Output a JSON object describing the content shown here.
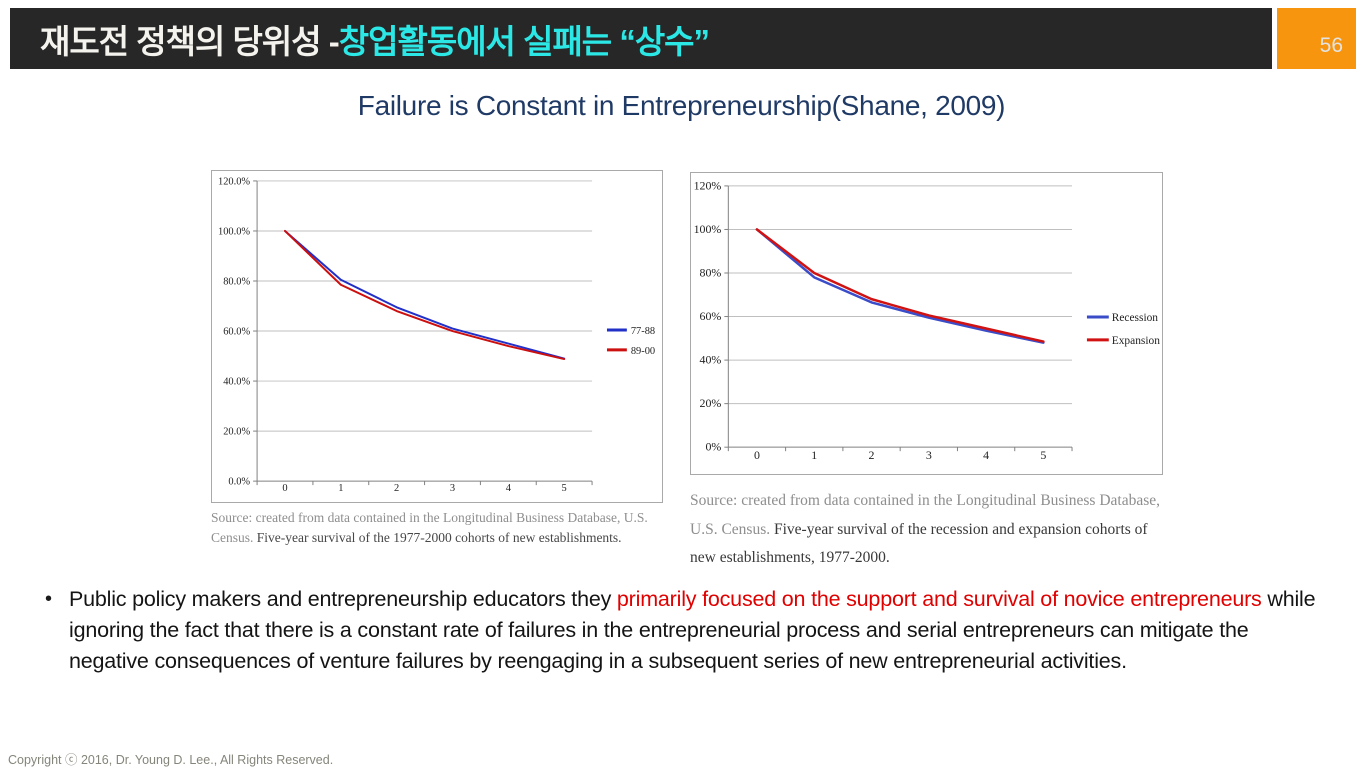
{
  "header": {
    "title_white": "재도전 정책의 당위성 - ",
    "title_cyan": "창업활동에서 실패는  “상수”",
    "page_number": "56",
    "bar_color": "#272727",
    "accent_color": "#2be8e6",
    "page_box_color": "#f7950f"
  },
  "slide_title": "Failure is Constant in Entrepreneurship(Shane, 2009)",
  "title_color": "#203a66",
  "chart_data": [
    {
      "type": "line",
      "title": "",
      "x": [
        "0",
        "1",
        "2",
        "3",
        "4",
        "5"
      ],
      "xlabel": "",
      "ylabel": "",
      "ylim": [
        0,
        120
      ],
      "ytick_labels": [
        "0.0%",
        "20.0%",
        "40.0%",
        "60.0%",
        "80.0%",
        "100.0%",
        "120.0%"
      ],
      "grid": true,
      "legend_position": "right",
      "series": [
        {
          "name": "77-88",
          "color": "#2230c8",
          "values": [
            100,
            80.5,
            69.5,
            61,
            55,
            49
          ]
        },
        {
          "name": "89-00",
          "color": "#cc0f0f",
          "values": [
            100,
            78.5,
            68,
            60,
            54,
            48.8
          ]
        }
      ]
    },
    {
      "type": "line",
      "title": "",
      "x": [
        "0",
        "1",
        "2",
        "3",
        "4",
        "5"
      ],
      "xlabel": "",
      "ylabel": "",
      "ylim": [
        0,
        120
      ],
      "ytick_labels": [
        "0%",
        "20%",
        "40%",
        "60%",
        "80%",
        "100%",
        "120%"
      ],
      "grid": true,
      "legend_position": "right",
      "series": [
        {
          "name": "Recession",
          "color": "#3a4cc8",
          "values": [
            100,
            78,
            66.5,
            59.5,
            53.5,
            48
          ]
        },
        {
          "name": "Expansion",
          "color": "#d11212",
          "values": [
            100,
            80,
            68,
            60.5,
            54.5,
            48.5
          ]
        }
      ]
    }
  ],
  "captions": {
    "left": [
      {
        "style": "gray",
        "text": "Source: created from data contained in the Longitudinal Business Database, U.S. Census. "
      },
      {
        "style": "dark",
        "text": "Five-year survival of the 1977-2000 cohorts of new establishments."
      }
    ],
    "right": [
      {
        "style": "gray",
        "text": "Source: created from data contained in the Longitudinal Business Database, U.S. Census. "
      },
      {
        "style": "dark",
        "text": "Five-year survival of the recession and expansion cohorts of new establishments, 1977-2000."
      }
    ]
  },
  "bullet": {
    "marker": "•",
    "segments": [
      {
        "style": "text",
        "text": "Public policy makers and entrepreneurship educators they "
      },
      {
        "style": "highlight",
        "text": "primarily focused on the support and survival of novice entrepreneurs"
      },
      {
        "style": "text",
        "text": " while ignoring the fact that there is a constant rate of failures in the entrepreneurial process and serial entrepreneurs can mitigate the negative consequences of venture failures by reengaging in a subsequent series of new entrepreneurial activities."
      }
    ]
  },
  "footer": "Copyright ⓒ 2016, Dr. Young D. Lee., All Rights Reserved."
}
